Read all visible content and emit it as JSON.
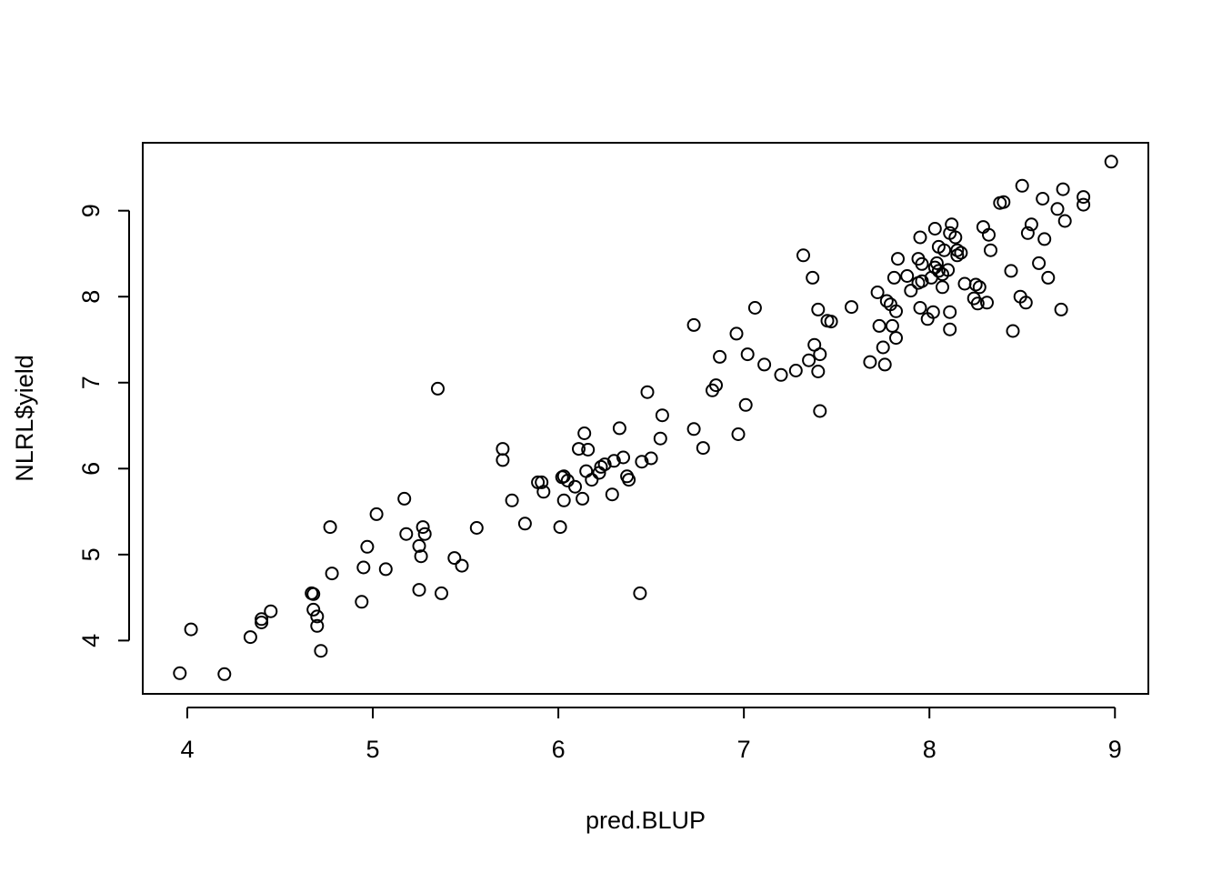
{
  "chart_data": {
    "type": "scatter",
    "title": "",
    "xlabel": "pred.BLUP",
    "ylabel": "NLRL$yield",
    "xlim": [
      3.76,
      9.18
    ],
    "ylim": [
      3.38,
      9.79
    ],
    "xticks": [
      4,
      5,
      6,
      7,
      8,
      9
    ],
    "yticks": [
      4,
      5,
      6,
      7,
      8,
      9
    ],
    "grid": false,
    "marker": "open-circle",
    "color": "#000000",
    "points": [
      [
        3.96,
        3.62
      ],
      [
        4.2,
        3.61
      ],
      [
        4.02,
        4.13
      ],
      [
        4.34,
        4.04
      ],
      [
        4.4,
        4.21
      ],
      [
        4.4,
        4.25
      ],
      [
        4.45,
        4.34
      ],
      [
        4.67,
        4.55
      ],
      [
        4.68,
        4.54
      ],
      [
        4.68,
        4.36
      ],
      [
        4.7,
        4.28
      ],
      [
        4.7,
        4.17
      ],
      [
        4.72,
        3.88
      ],
      [
        4.77,
        5.32
      ],
      [
        4.78,
        4.78
      ],
      [
        4.94,
        4.45
      ],
      [
        4.95,
        4.85
      ],
      [
        4.97,
        5.09
      ],
      [
        5.02,
        5.47
      ],
      [
        5.07,
        4.83
      ],
      [
        5.17,
        5.65
      ],
      [
        5.18,
        5.24
      ],
      [
        5.25,
        4.59
      ],
      [
        5.25,
        5.1
      ],
      [
        5.26,
        4.98
      ],
      [
        5.27,
        5.32
      ],
      [
        5.28,
        5.24
      ],
      [
        5.35,
        6.93
      ],
      [
        5.37,
        4.55
      ],
      [
        5.44,
        4.96
      ],
      [
        5.48,
        4.87
      ],
      [
        5.56,
        5.31
      ],
      [
        5.7,
        6.23
      ],
      [
        5.7,
        6.1
      ],
      [
        5.75,
        5.63
      ],
      [
        5.82,
        5.36
      ],
      [
        5.89,
        5.84
      ],
      [
        5.91,
        5.84
      ],
      [
        5.92,
        5.73
      ],
      [
        6.01,
        5.32
      ],
      [
        6.02,
        5.9
      ],
      [
        6.03,
        5.63
      ],
      [
        6.03,
        5.91
      ],
      [
        6.05,
        5.86
      ],
      [
        6.09,
        5.79
      ],
      [
        6.11,
        6.23
      ],
      [
        6.13,
        5.65
      ],
      [
        6.14,
        6.41
      ],
      [
        6.15,
        5.97
      ],
      [
        6.16,
        6.22
      ],
      [
        6.18,
        5.87
      ],
      [
        6.22,
        5.95
      ],
      [
        6.23,
        6.02
      ],
      [
        6.25,
        6.05
      ],
      [
        6.29,
        5.7
      ],
      [
        6.3,
        6.09
      ],
      [
        6.33,
        6.47
      ],
      [
        6.35,
        6.13
      ],
      [
        6.37,
        5.91
      ],
      [
        6.38,
        5.87
      ],
      [
        6.44,
        4.55
      ],
      [
        6.45,
        6.08
      ],
      [
        6.48,
        6.89
      ],
      [
        6.5,
        6.12
      ],
      [
        6.55,
        6.35
      ],
      [
        6.56,
        6.62
      ],
      [
        6.73,
        7.67
      ],
      [
        6.73,
        6.46
      ],
      [
        6.78,
        6.24
      ],
      [
        6.83,
        6.91
      ],
      [
        6.85,
        6.97
      ],
      [
        6.87,
        7.3
      ],
      [
        6.96,
        7.57
      ],
      [
        6.97,
        6.4
      ],
      [
        7.01,
        6.74
      ],
      [
        7.02,
        7.33
      ],
      [
        7.06,
        7.87
      ],
      [
        7.11,
        7.21
      ],
      [
        7.2,
        7.09
      ],
      [
        7.28,
        7.14
      ],
      [
        7.32,
        8.48
      ],
      [
        7.35,
        7.26
      ],
      [
        7.37,
        8.22
      ],
      [
        7.38,
        7.44
      ],
      [
        7.4,
        7.13
      ],
      [
        7.4,
        7.85
      ],
      [
        7.41,
        7.33
      ],
      [
        7.41,
        6.67
      ],
      [
        7.45,
        7.72
      ],
      [
        7.47,
        7.71
      ],
      [
        7.58,
        7.88
      ],
      [
        7.68,
        7.24
      ],
      [
        7.72,
        8.05
      ],
      [
        7.73,
        7.66
      ],
      [
        7.75,
        7.41
      ],
      [
        7.76,
        7.21
      ],
      [
        7.77,
        7.95
      ],
      [
        7.79,
        7.91
      ],
      [
        7.8,
        7.66
      ],
      [
        7.81,
        8.22
      ],
      [
        7.82,
        7.52
      ],
      [
        7.82,
        7.83
      ],
      [
        7.83,
        8.44
      ],
      [
        7.88,
        8.24
      ],
      [
        7.9,
        8.07
      ],
      [
        7.94,
        8.16
      ],
      [
        7.94,
        8.44
      ],
      [
        7.95,
        7.87
      ],
      [
        7.95,
        8.69
      ],
      [
        7.96,
        8.38
      ],
      [
        7.96,
        8.18
      ],
      [
        7.99,
        7.74
      ],
      [
        8.01,
        8.22
      ],
      [
        8.02,
        7.82
      ],
      [
        8.03,
        8.79
      ],
      [
        8.03,
        8.34
      ],
      [
        8.04,
        8.39
      ],
      [
        8.05,
        8.58
      ],
      [
        8.05,
        8.3
      ],
      [
        8.07,
        8.26
      ],
      [
        8.07,
        8.11
      ],
      [
        8.08,
        8.54
      ],
      [
        8.1,
        8.31
      ],
      [
        8.11,
        8.74
      ],
      [
        8.11,
        7.62
      ],
      [
        8.11,
        7.82
      ],
      [
        8.12,
        8.84
      ],
      [
        8.14,
        8.69
      ],
      [
        8.15,
        8.48
      ],
      [
        8.15,
        8.54
      ],
      [
        8.17,
        8.51
      ],
      [
        8.19,
        8.15
      ],
      [
        8.24,
        7.98
      ],
      [
        8.25,
        8.14
      ],
      [
        8.26,
        7.92
      ],
      [
        8.27,
        8.11
      ],
      [
        8.29,
        8.81
      ],
      [
        8.31,
        7.93
      ],
      [
        8.32,
        8.72
      ],
      [
        8.33,
        8.54
      ],
      [
        8.38,
        9.09
      ],
      [
        8.4,
        9.1
      ],
      [
        8.44,
        8.3
      ],
      [
        8.45,
        7.6
      ],
      [
        8.49,
        8.0
      ],
      [
        8.5,
        9.29
      ],
      [
        8.52,
        7.93
      ],
      [
        8.53,
        8.74
      ],
      [
        8.55,
        8.84
      ],
      [
        8.59,
        8.39
      ],
      [
        8.61,
        9.14
      ],
      [
        8.62,
        8.67
      ],
      [
        8.64,
        8.22
      ],
      [
        8.69,
        9.02
      ],
      [
        8.71,
        7.85
      ],
      [
        8.72,
        9.25
      ],
      [
        8.73,
        8.88
      ],
      [
        8.83,
        9.07
      ],
      [
        8.83,
        9.16
      ],
      [
        8.98,
        9.57
      ]
    ]
  }
}
